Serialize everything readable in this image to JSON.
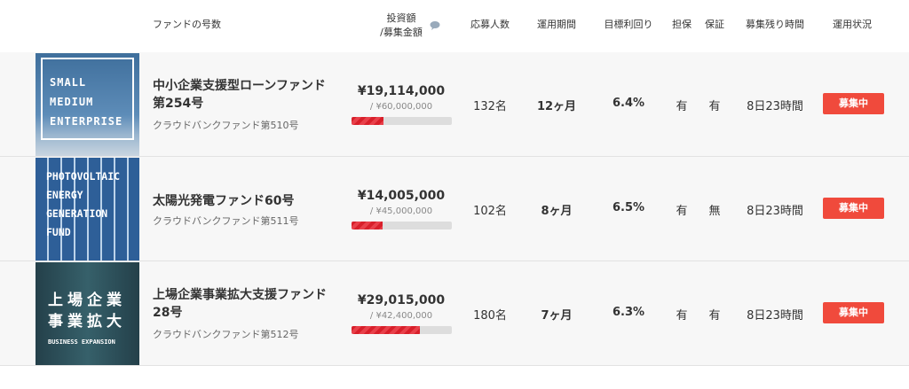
{
  "header": {
    "columns": [
      "ファンドの号数",
      "投資額",
      "/募集金額",
      "応募人数",
      "運用期間",
      "目標利回り",
      "担保",
      "保証",
      "募集残り時間",
      "運用状況"
    ]
  },
  "funds": [
    {
      "image_text": [
        "SMALL",
        "MEDIUM",
        "ENTERPRISE"
      ],
      "name": "中小企業支援型ローンファンド第254号",
      "provider": "クラウドバンクファンド第510号",
      "amount": "¥19,114,000",
      "goal": "/ ¥60,000,000",
      "progress": 32,
      "applicants": "132名",
      "period": "12ヶ月",
      "rate": "6.4%",
      "collateral": "有",
      "guarantee": "有",
      "remaining": "8日23時間",
      "status": "募集中"
    },
    {
      "image_text": [
        "PHOTOVOLTAIC",
        "ENERGY",
        "GENERATION",
        "FUND"
      ],
      "name": "太陽光発電ファンド60号",
      "provider": "クラウドバンクファンド第511号",
      "amount": "¥14,005,000",
      "goal": "/ ¥45,000,000",
      "progress": 31,
      "applicants": "102名",
      "period": "8ヶ月",
      "rate": "6.5%",
      "collateral": "有",
      "guarantee": "無",
      "remaining": "8日23時間",
      "status": "募集中"
    },
    {
      "image_text": [
        "上場企業",
        "事業拡大",
        "BUSINESS EXPANSION"
      ],
      "name": "上場企業事業拡大支援ファンド28号",
      "provider": "クラウドバンクファンド第512号",
      "amount": "¥29,015,000",
      "goal": "/ ¥42,400,000",
      "progress": 68,
      "applicants": "180名",
      "period": "7ヶ月",
      "rate": "6.3%",
      "collateral": "有",
      "guarantee": "有",
      "remaining": "8日23時間",
      "status": "募集中"
    }
  ]
}
